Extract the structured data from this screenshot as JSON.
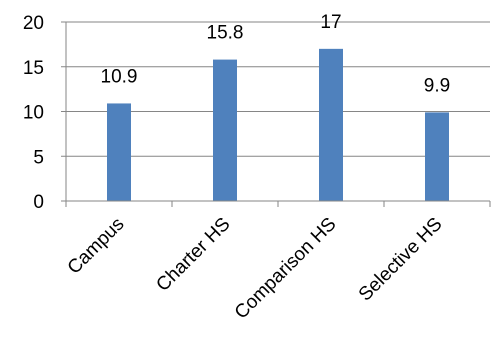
{
  "chart_data": {
    "type": "bar",
    "title": "",
    "xlabel": "",
    "ylabel": "",
    "categories": [
      "Campus",
      "Charter HS",
      "Comparison HS",
      "Selective HS"
    ],
    "values": [
      10.9,
      15.8,
      17,
      9.9
    ],
    "data_labels": [
      "10.9",
      "15.8",
      "17",
      "9.9"
    ],
    "ylim": [
      0,
      20
    ],
    "yticks": [
      0,
      5,
      10,
      15,
      20
    ],
    "ytick_labels": [
      "0",
      "5",
      "10",
      "15",
      "20"
    ],
    "grid": true,
    "legend": "none",
    "colors": {
      "bar": "#4F81BD",
      "grid": "#868686",
      "axis": "#868686"
    }
  }
}
